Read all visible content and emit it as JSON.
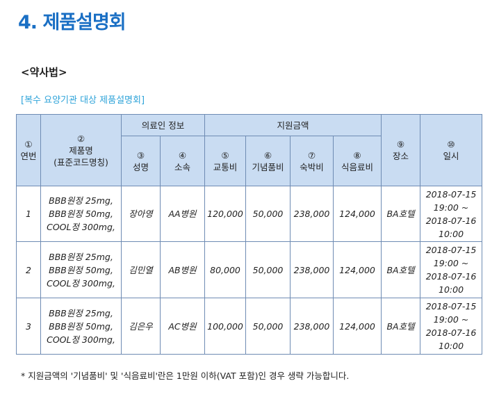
{
  "title": "4. 제품설명회",
  "law": "<약사법>",
  "caption": "[복수 요양기관 대상 제품설명회]",
  "table": {
    "headers": {
      "no": [
        "①",
        "연번"
      ],
      "product": [
        "②",
        "제품명",
        "(표준코드명칭)"
      ],
      "medical_info": "의료인 정보",
      "name": [
        "③",
        "성명"
      ],
      "affiliation": [
        "④",
        "소속"
      ],
      "support": "지원금액",
      "transport": [
        "⑤",
        "교통비"
      ],
      "souvenir": [
        "⑥",
        "기념품비"
      ],
      "lodging": [
        "⑦",
        "숙박비"
      ],
      "meals": [
        "⑧",
        "식음료비"
      ],
      "place": [
        "⑨",
        "장소"
      ],
      "datetime": [
        "⑩",
        "일시"
      ]
    },
    "rows": [
      {
        "no": "1",
        "product": [
          "BBB원정 25mg,",
          "BBB원정 50mg,",
          "COOL정 300mg,"
        ],
        "name": "장아영",
        "affiliation": "AA병원",
        "transport": "120,000",
        "souvenir": "50,000",
        "lodging": "238,000",
        "meals": "124,000",
        "place": "BA호텔",
        "datetime": [
          "2018-07-15",
          "19:00 ~",
          "2018-07-16",
          "10:00"
        ]
      },
      {
        "no": "2",
        "product": [
          "BBB원정 25mg,",
          "BBB원정 50mg,",
          "COOL정 300mg,"
        ],
        "name": "김민열",
        "affiliation": "AB병원",
        "transport": "80,000",
        "souvenir": "50,000",
        "lodging": "238,000",
        "meals": "124,000",
        "place": "BA호텔",
        "datetime": [
          "2018-07-15",
          "19:00 ~",
          "2018-07-16",
          "10:00"
        ]
      },
      {
        "no": "3",
        "product": [
          "BBB원정 25mg,",
          "BBB원정 50mg,",
          "COOL정 300mg,"
        ],
        "name": "김은우",
        "affiliation": "AC병원",
        "transport": "100,000",
        "souvenir": "50,000",
        "lodging": "238,000",
        "meals": "124,000",
        "place": "BA호텔",
        "datetime": [
          "2018-07-15",
          "19:00 ~",
          "2018-07-16",
          "10:00"
        ]
      }
    ]
  },
  "note": "* 지원금액의 '기념품비' 및 '식음료비'란은 1만원 이하(VAT 포함)인 경우 생략 가능합니다."
}
